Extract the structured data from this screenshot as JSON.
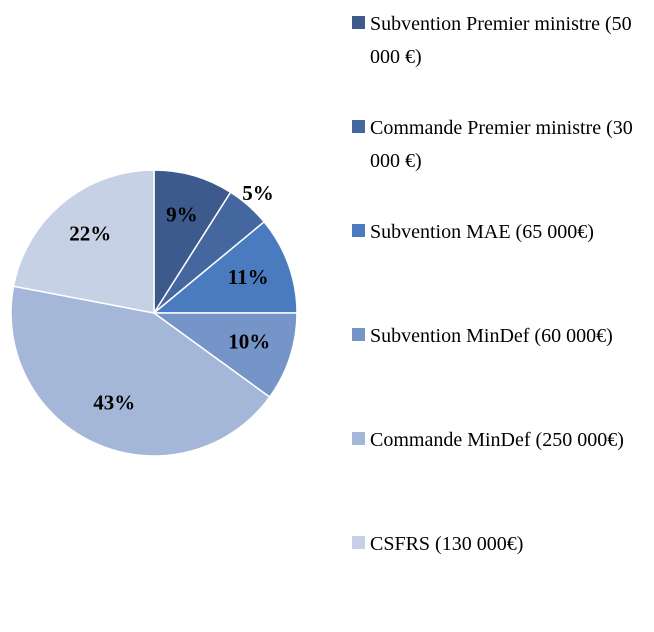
{
  "chart_data": {
    "type": "pie",
    "categories": [
      "Subvention Premier ministre (50 000 €)",
      "Commande Premier ministre (30 000 €)",
      "Subvention MAE (65 000€)",
      "Subvention MinDef (60 000€)",
      "Commande MinDef (250 000€)",
      "CSFRS (130 000€)"
    ],
    "values": [
      9,
      5,
      11,
      10,
      43,
      22
    ],
    "value_labels": [
      "9%",
      "5%",
      "11%",
      "10%",
      "43%",
      "22%"
    ],
    "colors": [
      "#3c5a8b",
      "#44679f",
      "#4a7bbf",
      "#7594c8",
      "#a5b7d8",
      "#c6d1e5"
    ],
    "legend": "right"
  }
}
